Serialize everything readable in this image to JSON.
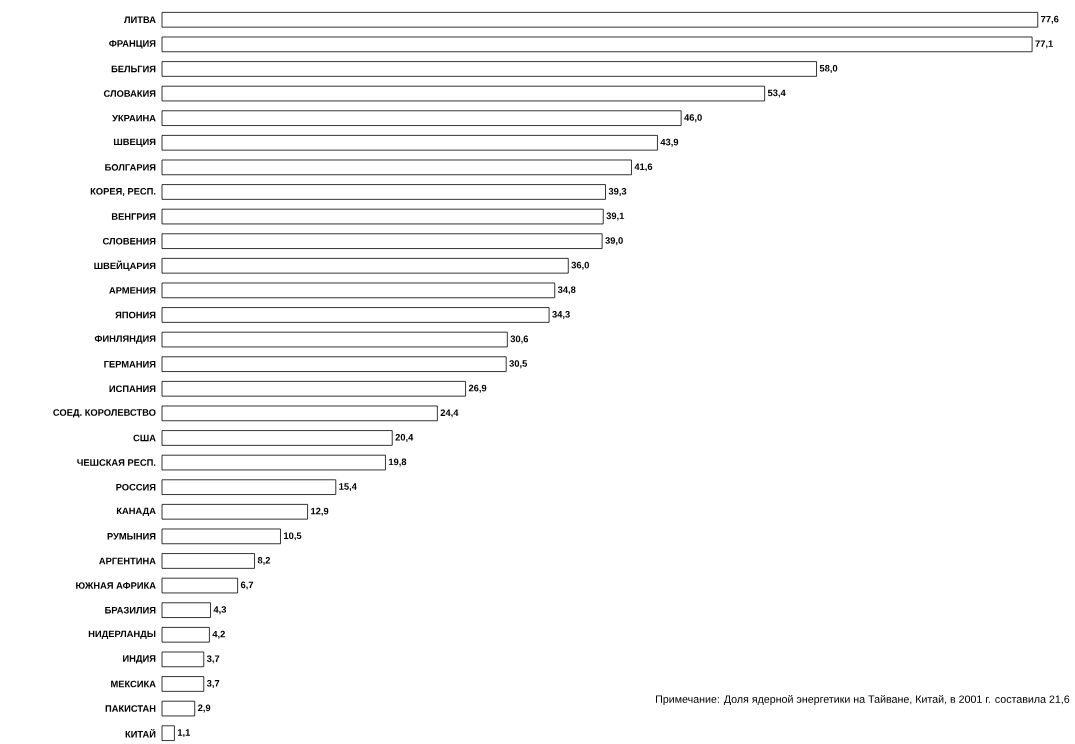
{
  "chart_data": {
    "type": "bar",
    "orientation": "horizontal",
    "color": "#ffffff",
    "categories": [
      "ЛИТВА",
      "ФРАНЦИЯ",
      "БЕЛЬГИЯ",
      "СЛОВАКИЯ",
      "УКРАИНА",
      "ШВЕЦИЯ",
      "БОЛГАРИЯ",
      "КОРЕЯ, РЕСП.",
      "ВЕНГРИЯ",
      "СЛОВЕНИЯ",
      "ШВЕЙЦАРИЯ",
      "АРМЕНИЯ",
      "ЯПОНИЯ",
      "ФИНЛЯНДИЯ",
      "ГЕРМАНИЯ",
      "ИСПАНИЯ",
      "СОЕД. КОРОЛЕВСТВО",
      "США",
      "ЧЕШСКАЯ РЕСП.",
      "РОССИЯ",
      "КАНАДА",
      "РУМЫНИЯ",
      "АРГЕНТИНА",
      "ЮЖНАЯ АФРИКА",
      "БРАЗИЛИЯ",
      "НИДЕРЛАНДЫ",
      "ИНДИЯ",
      "МЕКСИКА",
      "ПАКИСТАН",
      "КИТАЙ"
    ],
    "values": [
      77.6,
      77.1,
      58.0,
      53.4,
      46.0,
      43.9,
      41.6,
      39.3,
      39.1,
      39.0,
      36.0,
      34.8,
      34.3,
      30.6,
      30.5,
      26.9,
      24.4,
      20.4,
      19.8,
      15.4,
      12.9,
      10.5,
      8.2,
      6.7,
      4.3,
      4.2,
      3.7,
      3.7,
      2.9,
      1.1
    ],
    "value_labels": [
      "77,6",
      "77,1",
      "58,0",
      "53,4",
      "46,0",
      "43,9",
      "41,6",
      "39,3",
      "39,1",
      "39,0",
      "36,0",
      "34,8",
      "34,3",
      "30,6",
      "30,5",
      "26,9",
      "24,4",
      "20,4",
      "19,8",
      "15,4",
      "12,9",
      "10,5",
      "8,2",
      "6,7",
      "4,3",
      "4,2",
      "3,7",
      "3,7",
      "2,9",
      "1,1"
    ],
    "annotations": [
      "Примечание: Доля ядерной энергетики на Тайване, Китай, в 2001 г. составила 21,6"
    ]
  }
}
